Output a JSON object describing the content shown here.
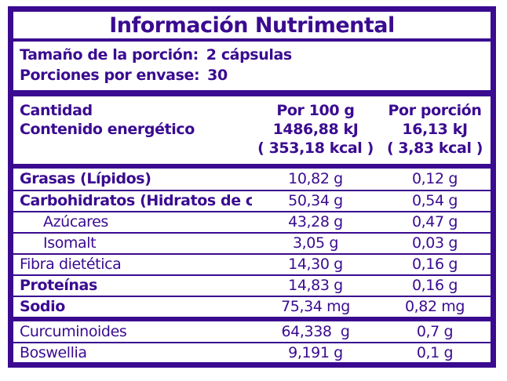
{
  "accent_color": "#3a0b90",
  "title": "Información Nutrimental",
  "serving": {
    "serving_size_label": "Tamaño de la porción:",
    "serving_size_value": "2 cápsulas",
    "servings_per_container_label": "Porciones por envase:",
    "servings_per_container_value": "30"
  },
  "header": {
    "amount_label": "Cantidad",
    "energy_label": "Contenido energético",
    "per_100g": {
      "title": "Por 100 g",
      "kj": "1486,88 kJ",
      "kcal": "( 353,18 kcal )"
    },
    "per_portion": {
      "title": "Por porción",
      "kj": "16,13 kJ",
      "kcal": "( 3,83 kcal )"
    }
  },
  "rows": [
    {
      "label": "Grasas (Lípidos)",
      "per100": "10,82 g",
      "portion": "0,12 g"
    },
    {
      "label": "Carbohidratos (Hidratos de carbono)",
      "per100": "50,34 g",
      "portion": "0,54 g"
    },
    {
      "label": "Azúcares",
      "per100": "43,28 g",
      "portion": "0,47 g"
    },
    {
      "label": "Isomalt",
      "per100": "3,05 g",
      "portion": "0,03 g"
    },
    {
      "label": "Fibra dietética",
      "per100": "14,30 g",
      "portion": "0,16 g"
    },
    {
      "label": "Proteínas",
      "per100": "14,83 g",
      "portion": "0,16 g"
    },
    {
      "label": "Sodio",
      "per100": "75,34 mg",
      "portion": "0,82 mg"
    }
  ],
  "extra_rows": [
    {
      "label": "Curcuminoides",
      "per100": "64,338  g",
      "portion": "0,7 g"
    },
    {
      "label": "Boswellia",
      "per100": "9,191 g",
      "portion": "0,1 g"
    }
  ]
}
